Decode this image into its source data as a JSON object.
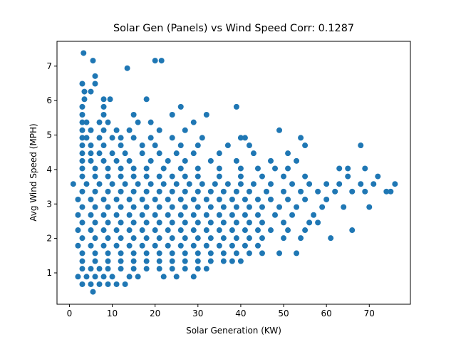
{
  "chart_data": {
    "type": "scatter",
    "title": "Solar Gen (Panels) vs Wind Speed Corr: 0.1287",
    "x_label": "Solar Generation (KW)",
    "y_label": "Avg Wind Speed (MPH)",
    "color": "#1f77b4",
    "xlim": [
      -2.9,
      79.6
    ],
    "ylim": [
      0.09,
      7.72
    ],
    "xticks": [
      0,
      10,
      20,
      30,
      40,
      50,
      60,
      70
    ],
    "yticks": [
      1,
      2,
      3,
      4,
      5,
      6,
      7
    ],
    "x": [
      5.5,
      3,
      5,
      7,
      9,
      11,
      13,
      2,
      4,
      6,
      8,
      10,
      14,
      16,
      22,
      25,
      29,
      3,
      5,
      7,
      9,
      12,
      15,
      18,
      21,
      24,
      27,
      30,
      32,
      3,
      6,
      9,
      12,
      15,
      18,
      21,
      24,
      27,
      30,
      33,
      36,
      38,
      40,
      3,
      6,
      9,
      12,
      15,
      18,
      21,
      24,
      27,
      30,
      33,
      36,
      39,
      42,
      45,
      49,
      53,
      2,
      5,
      8,
      11,
      14,
      17,
      20,
      23,
      26,
      29,
      32,
      35,
      38,
      41,
      44,
      3,
      6,
      9,
      12,
      15,
      18,
      21,
      24,
      27,
      30,
      33,
      36,
      39,
      42,
      45,
      50,
      54,
      61,
      2,
      5,
      8,
      11,
      14,
      17,
      20,
      23,
      26,
      29,
      32,
      35,
      38,
      41,
      44,
      47,
      51,
      55,
      66,
      3,
      6,
      9,
      12,
      15,
      18,
      21,
      24,
      27,
      30,
      33,
      36,
      39,
      42,
      45,
      50,
      56,
      58,
      2,
      5,
      8,
      11,
      14,
      17,
      20,
      23,
      26,
      29,
      32,
      35,
      38,
      41,
      44,
      48,
      52,
      57,
      3,
      6,
      9,
      12,
      15,
      18,
      21,
      24,
      27,
      30,
      33,
      36,
      39,
      42,
      45,
      49,
      53,
      59,
      64,
      70,
      2,
      5,
      8,
      11,
      14,
      17,
      20,
      23,
      26,
      29,
      32,
      35,
      38,
      41,
      44,
      47,
      51,
      55,
      60,
      3,
      6,
      9,
      12,
      15,
      18,
      21,
      24,
      27,
      30,
      33,
      36,
      39,
      42,
      46,
      50,
      54,
      58,
      62,
      66,
      69,
      74,
      75,
      0.9,
      4,
      7,
      10,
      13,
      16,
      19,
      22,
      25,
      28,
      31,
      34,
      37,
      40,
      43,
      47,
      52,
      56,
      60,
      63,
      68,
      71,
      76,
      3,
      6,
      9,
      12,
      15,
      18,
      21,
      24,
      27,
      30,
      35,
      40,
      45,
      50,
      55,
      65,
      72,
      3,
      6,
      9,
      12,
      15,
      18,
      22,
      26,
      30,
      35,
      40,
      44,
      48,
      51,
      63,
      65,
      69,
      3,
      5,
      8,
      11,
      14,
      19,
      23,
      27,
      33,
      39,
      47,
      53,
      3,
      5,
      7,
      10,
      13,
      17,
      21,
      25,
      29,
      35,
      43,
      51,
      3,
      5,
      8,
      12,
      17,
      20,
      26,
      30,
      37,
      42,
      55,
      68,
      3,
      4,
      7,
      10,
      12,
      15,
      19,
      24,
      31,
      40,
      41,
      54,
      3,
      5,
      8,
      11,
      14,
      21,
      27,
      49,
      3,
      4,
      7,
      9,
      16,
      19,
      29,
      3,
      8,
      15,
      24,
      32,
      3,
      8,
      26,
      39,
      3.5,
      8,
      9.5,
      18,
      3.5,
      5,
      3,
      6,
      6,
      13.5,
      5.5,
      20,
      21.5,
      3.3
    ],
    "values": [
      0.45,
      0.67,
      0.67,
      0.67,
      0.67,
      0.67,
      0.67,
      0.89,
      0.89,
      0.89,
      0.89,
      0.89,
      0.89,
      0.89,
      0.89,
      0.89,
      0.89,
      1.12,
      1.12,
      1.12,
      1.12,
      1.12,
      1.12,
      1.12,
      1.12,
      1.12,
      1.12,
      1.12,
      1.12,
      1.34,
      1.34,
      1.34,
      1.34,
      1.34,
      1.34,
      1.34,
      1.34,
      1.34,
      1.34,
      1.34,
      1.34,
      1.34,
      1.34,
      1.57,
      1.57,
      1.57,
      1.57,
      1.57,
      1.57,
      1.57,
      1.57,
      1.57,
      1.57,
      1.57,
      1.57,
      1.57,
      1.57,
      1.57,
      1.57,
      1.57,
      1.79,
      1.79,
      1.79,
      1.79,
      1.79,
      1.79,
      1.79,
      1.79,
      1.79,
      1.79,
      1.79,
      1.79,
      1.79,
      1.79,
      1.79,
      2.01,
      2.01,
      2.01,
      2.01,
      2.01,
      2.01,
      2.01,
      2.01,
      2.01,
      2.01,
      2.01,
      2.01,
      2.01,
      2.01,
      2.01,
      2.01,
      2.01,
      2.01,
      2.24,
      2.24,
      2.24,
      2.24,
      2.24,
      2.24,
      2.24,
      2.24,
      2.24,
      2.24,
      2.24,
      2.24,
      2.24,
      2.24,
      2.24,
      2.24,
      2.24,
      2.24,
      2.24,
      2.46,
      2.46,
      2.46,
      2.46,
      2.46,
      2.46,
      2.46,
      2.46,
      2.46,
      2.46,
      2.46,
      2.46,
      2.46,
      2.46,
      2.46,
      2.46,
      2.46,
      2.46,
      2.68,
      2.68,
      2.68,
      2.68,
      2.68,
      2.68,
      2.68,
      2.68,
      2.68,
      2.68,
      2.68,
      2.68,
      2.68,
      2.68,
      2.68,
      2.68,
      2.68,
      2.68,
      2.91,
      2.91,
      2.91,
      2.91,
      2.91,
      2.91,
      2.91,
      2.91,
      2.91,
      2.91,
      2.91,
      2.91,
      2.91,
      2.91,
      2.91,
      2.91,
      2.91,
      2.91,
      2.91,
      2.91,
      3.13,
      3.13,
      3.13,
      3.13,
      3.13,
      3.13,
      3.13,
      3.13,
      3.13,
      3.13,
      3.13,
      3.13,
      3.13,
      3.13,
      3.13,
      3.13,
      3.13,
      3.13,
      3.13,
      3.36,
      3.36,
      3.36,
      3.36,
      3.36,
      3.36,
      3.36,
      3.36,
      3.36,
      3.36,
      3.36,
      3.36,
      3.36,
      3.36,
      3.36,
      3.36,
      3.36,
      3.36,
      3.36,
      3.36,
      3.36,
      3.36,
      3.36,
      3.58,
      3.58,
      3.58,
      3.58,
      3.58,
      3.58,
      3.58,
      3.58,
      3.58,
      3.58,
      3.58,
      3.58,
      3.58,
      3.58,
      3.58,
      3.58,
      3.58,
      3.58,
      3.58,
      3.58,
      3.58,
      3.58,
      3.58,
      3.8,
      3.8,
      3.8,
      3.8,
      3.8,
      3.8,
      3.8,
      3.8,
      3.8,
      3.8,
      3.8,
      3.8,
      3.8,
      3.8,
      3.8,
      3.8,
      3.8,
      4.03,
      4.03,
      4.03,
      4.03,
      4.03,
      4.03,
      4.03,
      4.03,
      4.03,
      4.03,
      4.03,
      4.03,
      4.03,
      4.03,
      4.03,
      4.03,
      4.03,
      4.25,
      4.25,
      4.25,
      4.25,
      4.25,
      4.25,
      4.25,
      4.25,
      4.25,
      4.25,
      4.25,
      4.25,
      4.47,
      4.47,
      4.47,
      4.47,
      4.47,
      4.47,
      4.47,
      4.47,
      4.47,
      4.47,
      4.47,
      4.47,
      4.7,
      4.7,
      4.7,
      4.7,
      4.7,
      4.7,
      4.7,
      4.7,
      4.7,
      4.7,
      4.7,
      4.7,
      4.92,
      4.92,
      4.92,
      4.92,
      4.92,
      4.92,
      4.92,
      4.92,
      4.92,
      4.92,
      4.92,
      4.92,
      5.14,
      5.14,
      5.14,
      5.14,
      5.14,
      5.14,
      5.14,
      5.14,
      5.37,
      5.37,
      5.37,
      5.37,
      5.37,
      5.37,
      5.37,
      5.59,
      5.59,
      5.59,
      5.59,
      5.59,
      5.82,
      5.82,
      5.82,
      5.82,
      6.04,
      6.04,
      6.04,
      6.04,
      6.26,
      6.26,
      6.49,
      6.49,
      6.71,
      6.94,
      7.16,
      7.16,
      7.16,
      7.38
    ]
  }
}
